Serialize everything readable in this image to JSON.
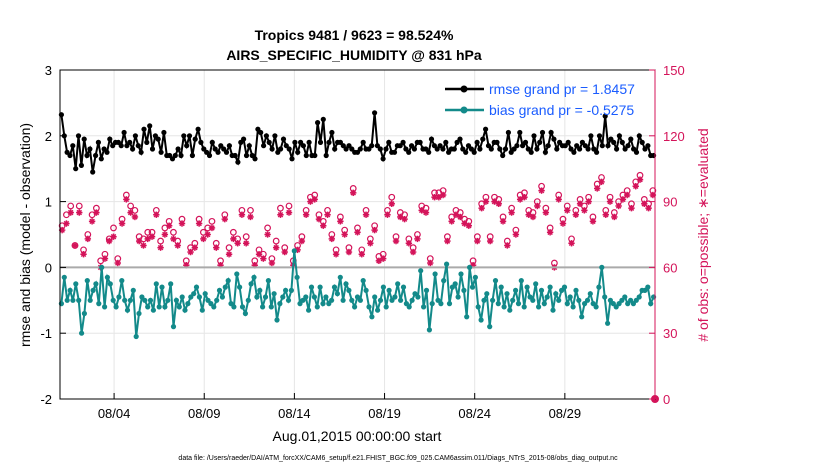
{
  "chart_data": {
    "type": "line",
    "title": "Tropics 9481 / 9623 = 98.524%",
    "subtitle": "AIRS_SPECIFIC_HUMIDITY @ 831 hPa",
    "xlabel": "Aug.01,2015 00:00:00 start",
    "ylabel": "rmse and bias (model - observation)",
    "y2label": "# of obs: o=possible; ∗=evaluated",
    "footnote": "data file: /Users/raeder/DAI/ATM_forcXX/CAM6_setup/f.e21.FHIST_BGC.f09_025.CAM6assim.011/Diags_NTrS_2015-08/obs_diag_output.nc",
    "x_range_days": [
      0,
      33
    ],
    "ylim": [
      -2,
      3
    ],
    "y2lim": [
      0,
      150
    ],
    "xticks": [
      {
        "day": 3,
        "label": "08/04"
      },
      {
        "day": 8,
        "label": "08/09"
      },
      {
        "day": 13,
        "label": "08/14"
      },
      {
        "day": 18,
        "label": "08/19"
      },
      {
        "day": 23,
        "label": "08/24"
      },
      {
        "day": 28,
        "label": "08/29"
      }
    ],
    "yticks": [
      "-2",
      "-1",
      "0",
      "1",
      "2",
      "3"
    ],
    "y2ticks": [
      "0",
      "30",
      "60",
      "90",
      "120",
      "150"
    ],
    "zero_line": 0,
    "grid": true,
    "legend_position": "top-right",
    "series": [
      {
        "name": "rmse grand pr = 1.8457",
        "color": "#000000",
        "values": [
          2.32,
          2.0,
          1.75,
          1.7,
          1.85,
          1.5,
          2.0,
          1.55,
          1.95,
          1.7,
          1.8,
          1.45,
          1.7,
          1.9,
          1.65,
          1.8,
          1.75,
          1.95,
          1.85,
          1.9,
          1.9,
          1.85,
          2.05,
          1.85,
          1.9,
          1.8,
          2.0,
          1.85,
          1.75,
          2.1,
          1.9,
          2.15,
          1.8,
          2.0,
          1.95,
          1.75,
          2.05,
          1.7,
          1.7,
          1.65,
          1.7,
          1.8,
          1.7,
          2.0,
          1.85,
          2.0,
          1.7,
          1.95,
          2.1,
          1.9,
          1.8,
          1.75,
          1.7,
          1.9,
          1.8,
          1.75,
          1.85,
          1.8,
          1.75,
          1.85,
          1.7,
          1.7,
          1.6,
          1.9,
          1.95,
          1.7,
          1.85,
          1.7,
          1.65,
          2.1,
          2.05,
          1.85,
          2.0,
          1.9,
          1.8,
          2.0,
          1.75,
          1.8,
          1.95,
          1.85,
          1.8,
          1.65,
          1.9,
          1.75,
          1.9,
          1.85,
          1.7,
          1.9,
          1.7,
          1.7,
          2.2,
          1.9,
          2.25,
          1.7,
          1.9,
          2.05,
          1.8,
          1.9,
          1.9,
          1.85,
          1.8,
          1.85,
          1.8,
          1.75,
          1.75,
          1.8,
          1.9,
          1.8,
          1.8,
          1.85,
          2.35,
          1.85,
          1.8,
          1.65,
          1.8,
          1.9,
          1.75,
          1.75,
          1.85,
          1.85,
          1.9,
          1.8,
          1.75,
          1.85,
          1.8,
          1.9,
          1.9,
          1.8,
          1.8,
          1.75,
          1.95,
          1.85,
          1.8,
          1.85,
          1.8,
          1.9,
          1.75,
          1.8,
          1.8,
          1.9,
          1.95,
          1.8,
          1.75,
          1.85,
          1.8,
          1.75,
          1.9,
          1.8,
          1.95,
          2.1,
          1.85,
          1.8,
          1.9,
          1.9,
          1.8,
          1.7,
          1.8,
          2.05,
          1.75,
          1.8,
          1.85,
          2.05,
          1.85,
          1.9,
          1.8,
          1.75,
          2.0,
          1.8,
          1.9,
          2.05,
          1.75,
          1.85,
          2.05,
          1.95,
          1.8,
          1.9,
          1.85,
          1.85,
          1.9,
          1.8,
          1.75,
          1.85,
          1.8,
          1.9,
          1.85,
          1.8,
          2.0,
          1.8,
          1.75,
          2.0,
          1.85,
          2.3,
          1.85,
          1.95,
          1.9,
          1.8,
          2.0,
          1.9,
          1.8,
          1.85,
          1.95,
          1.8,
          1.75,
          2.0,
          1.9,
          1.8,
          1.85,
          1.7,
          1.7
        ]
      },
      {
        "name": "bias grand pr = -0.5275",
        "color": "#138a8a",
        "values": [
          -0.55,
          -0.15,
          -0.5,
          -0.35,
          -0.5,
          -0.25,
          -0.5,
          -1.0,
          -0.7,
          -0.2,
          -0.5,
          -0.35,
          -0.25,
          -0.55,
          0,
          -0.6,
          -0.15,
          -0.25,
          -0.5,
          -0.6,
          -0.45,
          -0.2,
          -0.5,
          -0.65,
          -0.5,
          -0.35,
          -1.05,
          -0.7,
          -0.45,
          -0.5,
          -0.6,
          -0.5,
          -0.65,
          -0.25,
          -0.6,
          -0.3,
          -0.6,
          -0.5,
          -0.25,
          -0.9,
          -0.5,
          -0.6,
          -0.45,
          -0.65,
          -0.55,
          -0.45,
          -0.4,
          -0.3,
          -0.45,
          -0.65,
          -0.4,
          -0.5,
          -0.55,
          -0.6,
          -0.5,
          -0.35,
          -0.45,
          -0.3,
          -0.2,
          -0.55,
          -0.6,
          -0.1,
          -0.3,
          -0.6,
          -0.7,
          -0.5,
          -0.25,
          -0.15,
          -0.45,
          -0.35,
          -0.6,
          -0.45,
          -0.2,
          -0.6,
          -0.4,
          -0.8,
          -0.55,
          -0.45,
          -0.35,
          -0.5,
          -0.35,
          0.25,
          -0.15,
          -0.55,
          -0.5,
          -0.45,
          -0.65,
          -0.3,
          -0.45,
          -0.6,
          -0.3,
          -0.55,
          -0.45,
          -0.55,
          -0.5,
          -0.3,
          -0.4,
          -0.15,
          -0.5,
          -0.25,
          -0.35,
          -0.5,
          -0.6,
          -0.45,
          -0.5,
          -0.2,
          -0.35,
          -0.6,
          -0.75,
          -0.45,
          -0.65,
          -0.5,
          -0.3,
          -0.6,
          -0.35,
          -0.5,
          -0.45,
          -0.25,
          -0.5,
          -0.3,
          -0.55,
          -0.6,
          -0.5,
          -0.4,
          -0.45,
          -0.05,
          -0.6,
          -0.35,
          -0.95,
          -0.55,
          -0.1,
          -0.5,
          -0.55,
          -0.2,
          0.05,
          -0.55,
          -0.3,
          -0.25,
          -0.45,
          -0.1,
          -0.35,
          -0.75,
          0,
          -0.3,
          -0.15,
          -0.6,
          -0.8,
          -0.5,
          -0.4,
          -0.9,
          -0.5,
          -0.2,
          -0.55,
          -0.3,
          -0.6,
          -0.4,
          -0.65,
          -0.5,
          -0.35,
          -0.55,
          -0.2,
          -0.6,
          -0.3,
          -0.45,
          -0.5,
          -0.25,
          -0.6,
          -0.35,
          -0.55,
          -0.45,
          -0.3,
          -0.65,
          -0.4,
          -0.5,
          -0.35,
          -0.3,
          -0.55,
          -0.45,
          -0.6,
          -0.35,
          -0.5,
          -0.75,
          -0.55,
          -0.5,
          -0.4,
          -0.55,
          -0.6,
          -0.3,
          0.0,
          -0.45,
          -0.85,
          -0.5,
          -0.55,
          -0.6,
          -0.55,
          -0.5,
          -0.45,
          -0.55,
          -0.5,
          -0.55,
          -0.5,
          -0.45,
          -0.35,
          -0.35,
          -0.3,
          -0.55,
          -0.45
        ]
      }
    ],
    "obs_possible": [
      79,
      84,
      88,
      70,
      88,
      68,
      75,
      84,
      87,
      63,
      66,
      73,
      78,
      64,
      82,
      93,
      88,
      86,
      74,
      73,
      76,
      76,
      86,
      72,
      78,
      81,
      76,
      72,
      82,
      63,
      69,
      71,
      82,
      76,
      78,
      81,
      71,
      63,
      84,
      69,
      76,
      73,
      86,
      74,
      86,
      63,
      68,
      66,
      78,
      64,
      72,
      87,
      69,
      88,
      63,
      70,
      74,
      86,
      92,
      93,
      84,
      81,
      86,
      75,
      68,
      83,
      77,
      69,
      96,
      78,
      68,
      86,
      73,
      79,
      65,
      66,
      86,
      92,
      74,
      85,
      84,
      73,
      69,
      75,
      88,
      87,
      64,
      94,
      94,
      95,
      74,
      83,
      86,
      85,
      82,
      81,
      63,
      74,
      89,
      92,
      74,
      92,
      91,
      83,
      72,
      87,
      77,
      93,
      94,
      86,
      85,
      90,
      97,
      87,
      78,
      62,
      93,
      82,
      88,
      73,
      86,
      91,
      88,
      92,
      83,
      98,
      101,
      86,
      92,
      85,
      90,
      93,
      95,
      89,
      99,
      102,
      91,
      89,
      95
    ],
    "obs_evaluated": [
      77,
      80,
      85,
      70,
      85,
      66,
      73,
      81,
      85,
      60,
      64,
      72,
      74,
      62,
      80,
      91,
      85,
      83,
      72,
      70,
      73,
      74,
      84,
      69,
      75,
      79,
      73,
      70,
      80,
      61,
      67,
      69,
      80,
      73,
      75,
      78,
      69,
      61,
      82,
      66,
      73,
      71,
      84,
      71,
      83,
      61,
      66,
      64,
      75,
      62,
      69,
      84,
      67,
      85,
      61,
      68,
      72,
      84,
      90,
      91,
      82,
      79,
      84,
      73,
      66,
      81,
      75,
      67,
      94,
      76,
      66,
      84,
      71,
      77,
      63,
      64,
      84,
      89,
      72,
      83,
      82,
      71,
      67,
      73,
      86,
      85,
      62,
      92,
      92,
      93,
      72,
      81,
      84,
      83,
      80,
      79,
      61,
      72,
      87,
      90,
      72,
      90,
      89,
      81,
      70,
      85,
      75,
      91,
      92,
      84,
      83,
      88,
      95,
      85,
      76,
      60,
      91,
      80,
      86,
      71,
      84,
      89,
      86,
      90,
      81,
      96,
      99,
      84,
      90,
      83,
      88,
      91,
      93,
      87,
      97,
      100,
      89,
      87,
      93
    ]
  }
}
